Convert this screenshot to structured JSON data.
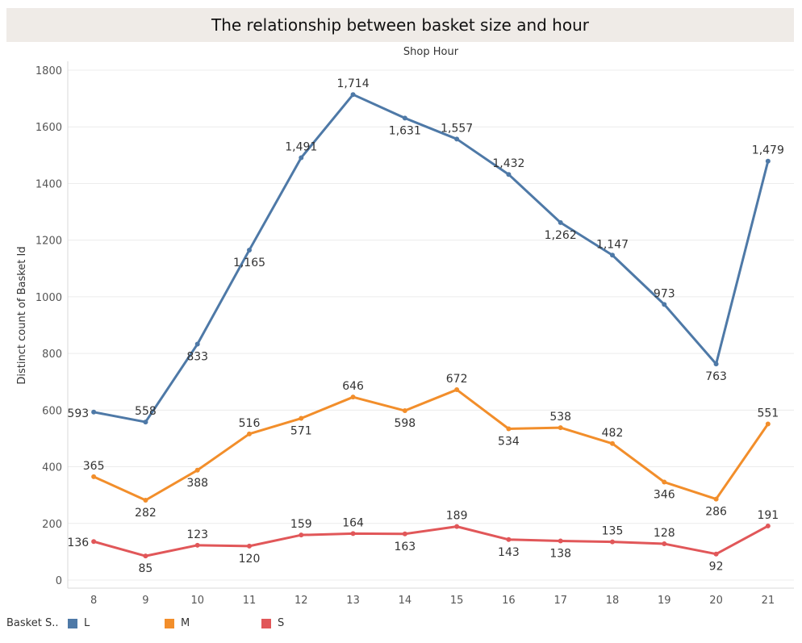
{
  "title": "The relationship between basket size and hour",
  "legend_title": "Basket S..",
  "chart_data": {
    "type": "line",
    "top_header": "Shop Hour",
    "ylabel": "Distinct count of Basket Id",
    "xlabel": "",
    "x": [
      8,
      9,
      10,
      11,
      12,
      13,
      14,
      15,
      16,
      17,
      18,
      19,
      20,
      21
    ],
    "ylim": [
      0,
      1800
    ],
    "yticks": [
      0,
      200,
      400,
      600,
      800,
      1000,
      1200,
      1400,
      1600,
      1800
    ],
    "grid": true,
    "legend_position": "bottom-left",
    "series": [
      {
        "name": "L",
        "color": "#4e79a7",
        "values": [
          593,
          558,
          833,
          1165,
          1491,
          1714,
          1631,
          1557,
          1432,
          1262,
          1147,
          973,
          763,
          1479
        ],
        "labels": [
          "593",
          "558",
          "833",
          "1,165",
          "1,491",
          "1,714",
          "1,631",
          "1,557",
          "1,432",
          "1,262",
          "1,147",
          "973",
          "763",
          "1,479"
        ]
      },
      {
        "name": "M",
        "color": "#f28e2b",
        "values": [
          365,
          282,
          388,
          516,
          571,
          646,
          598,
          672,
          534,
          538,
          482,
          346,
          286,
          551
        ],
        "labels": [
          "365",
          "282",
          "388",
          "516",
          "571",
          "646",
          "598",
          "672",
          "534",
          "538",
          "482",
          "346",
          "286",
          "551"
        ]
      },
      {
        "name": "S",
        "color": "#e15759",
        "values": [
          136,
          85,
          123,
          120,
          159,
          164,
          163,
          189,
          143,
          138,
          135,
          128,
          92,
          191
        ],
        "labels": [
          "136",
          "85",
          "123",
          "120",
          "159",
          "164",
          "163",
          "189",
          "143",
          "138",
          "135",
          "128",
          "92",
          "191"
        ]
      }
    ]
  }
}
